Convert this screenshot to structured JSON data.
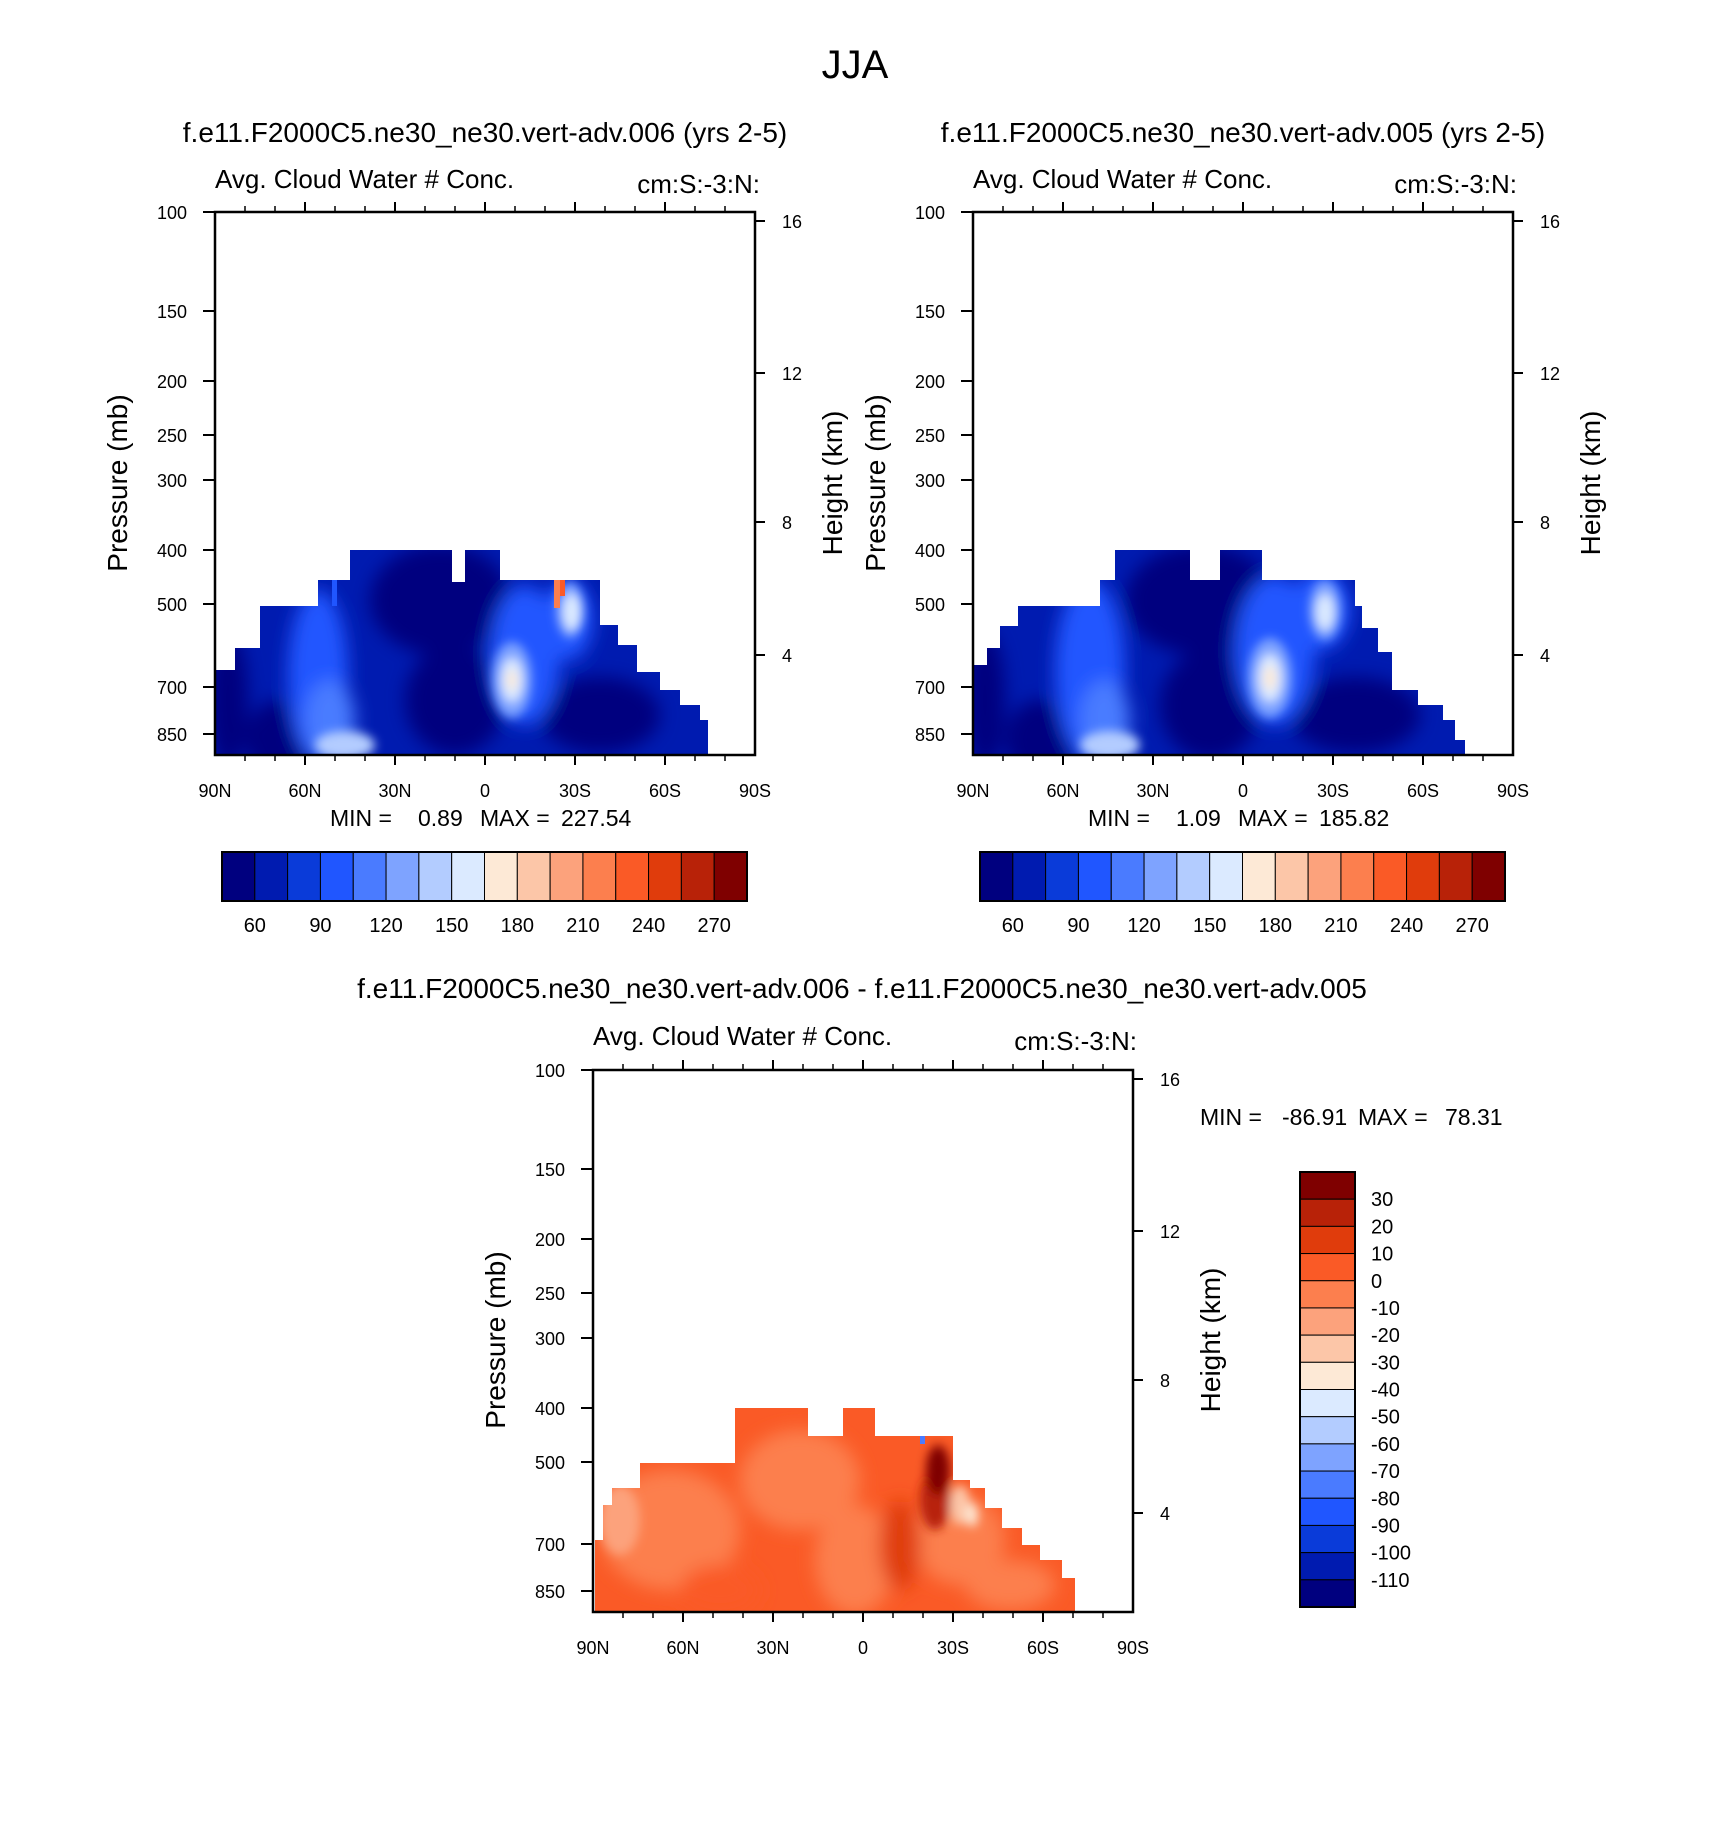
{
  "figure_title": "JJA",
  "chart_data": [
    {
      "type": "heatmap",
      "title": "f.e11.F2000C5.ne30_ne30.vert-adv.006 (yrs 2-5)",
      "subtitle_left": "Avg. Cloud Water # Conc.",
      "subtitle_right": "cm:S:-3:N:",
      "ylabel": "Pressure (mb)",
      "ylabel_right": "Height (km)",
      "x_ticks": [
        "90N",
        "60N",
        "30N",
        "0",
        "30S",
        "60S",
        "90S"
      ],
      "y_ticks": [
        "100",
        "150",
        "200",
        "250",
        "300",
        "400",
        "500",
        "700",
        "850"
      ],
      "y_right_ticks": [
        "16",
        "12",
        "8",
        "4"
      ],
      "ylim": [
        1000,
        100
      ],
      "stats": {
        "min_label": "MIN =",
        "min": "0.89",
        "max_label": "MAX =",
        "max": "227.54"
      },
      "colorbar": {
        "labels": [
          "60",
          "90",
          "120",
          "150",
          "180",
          "210",
          "240",
          "270"
        ],
        "colors": [
          "#00007f",
          "#001bb0",
          "#0a3bd9",
          "#2056ff",
          "#4a7bff",
          "#7ea3ff",
          "#b3ccff",
          "#dbeaff",
          "#fde9d6",
          "#fcc6a8",
          "#fca27c",
          "#fc7f4e",
          "#fa5a26",
          "#e03c0c",
          "#b82208",
          "#7f0000"
        ]
      }
    },
    {
      "type": "heatmap",
      "title": "f.e11.F2000C5.ne30_ne30.vert-adv.005 (yrs 2-5)",
      "subtitle_left": "Avg. Cloud Water # Conc.",
      "subtitle_right": "cm:S:-3:N:",
      "ylabel": "Pressure (mb)",
      "ylabel_right": "Height (km)",
      "x_ticks": [
        "90N",
        "60N",
        "30N",
        "0",
        "30S",
        "60S",
        "90S"
      ],
      "y_ticks": [
        "100",
        "150",
        "200",
        "250",
        "300",
        "400",
        "500",
        "700",
        "850"
      ],
      "y_right_ticks": [
        "16",
        "12",
        "8",
        "4"
      ],
      "ylim": [
        1000,
        100
      ],
      "stats": {
        "min_label": "MIN =",
        "min": "1.09",
        "max_label": "MAX =",
        "max": "185.82"
      },
      "colorbar": {
        "labels": [
          "60",
          "90",
          "120",
          "150",
          "180",
          "210",
          "240",
          "270"
        ],
        "colors": [
          "#00007f",
          "#001bb0",
          "#0a3bd9",
          "#2056ff",
          "#4a7bff",
          "#7ea3ff",
          "#b3ccff",
          "#dbeaff",
          "#fde9d6",
          "#fcc6a8",
          "#fca27c",
          "#fc7f4e",
          "#fa5a26",
          "#e03c0c",
          "#b82208",
          "#7f0000"
        ]
      }
    },
    {
      "type": "heatmap",
      "title": "f.e11.F2000C5.ne30_ne30.vert-adv.006 - f.e11.F2000C5.ne30_ne30.vert-adv.005",
      "subtitle_left": "Avg. Cloud Water # Conc.",
      "subtitle_right": "cm:S:-3:N:",
      "ylabel": "Pressure (mb)",
      "ylabel_right": "Height (km)",
      "x_ticks": [
        "90N",
        "60N",
        "30N",
        "0",
        "30S",
        "60S",
        "90S"
      ],
      "y_ticks": [
        "100",
        "150",
        "200",
        "250",
        "300",
        "400",
        "500",
        "700",
        "850"
      ],
      "y_right_ticks": [
        "16",
        "12",
        "8",
        "4"
      ],
      "ylim": [
        1000,
        100
      ],
      "stats": {
        "min_label": "MIN =",
        "min": "-86.91",
        "max_label": "MAX =",
        "max": "78.31"
      },
      "colorbar": {
        "labels": [
          "30",
          "20",
          "10",
          "0",
          "-10",
          "-20",
          "-30",
          "-40",
          "-50",
          "-60",
          "-70",
          "-80",
          "-90",
          "-100",
          "-110"
        ],
        "colors": [
          "#7f0000",
          "#b82208",
          "#e03c0c",
          "#fa5a26",
          "#fc7f4e",
          "#fca27c",
          "#fcc6a8",
          "#fde9d6",
          "#dbeaff",
          "#b3ccff",
          "#7ea3ff",
          "#4a7bff",
          "#2056ff",
          "#0a3bd9",
          "#001bb0",
          "#00007f"
        ]
      }
    }
  ]
}
